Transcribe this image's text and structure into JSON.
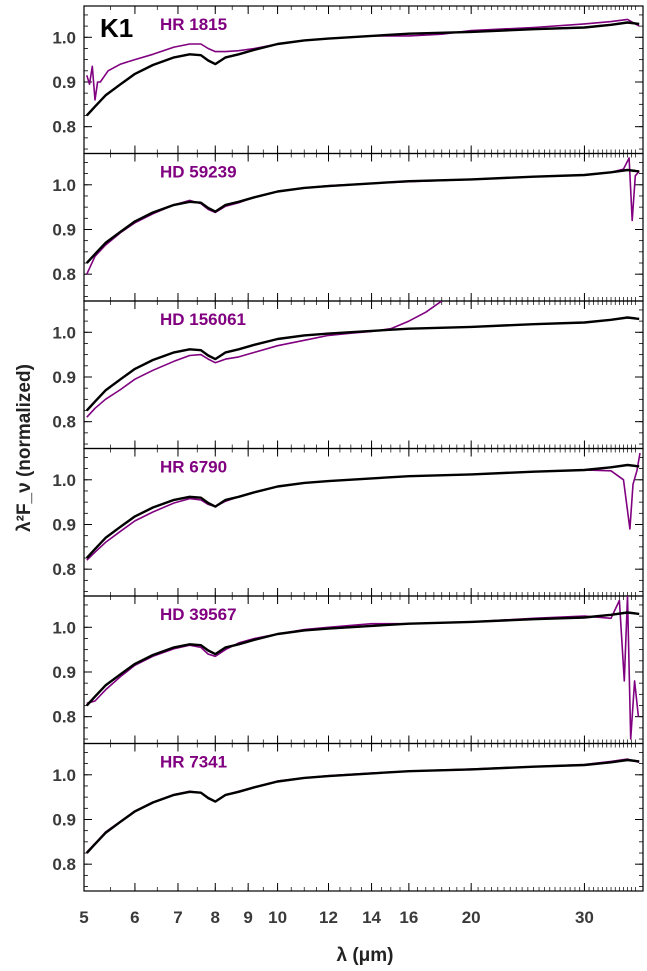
{
  "chart_data": {
    "type": "line",
    "spectral_type": "K1",
    "xlabel": "λ (μm)",
    "ylabel": "λ²F_ν (normalized)",
    "x_scale": "log",
    "xlim": [
      5.0,
      37.0
    ],
    "ylim": [
      0.74,
      1.07
    ],
    "x_ticks": [
      5,
      6,
      7,
      8,
      9,
      10,
      12,
      14,
      16,
      20,
      30
    ],
    "y_ticks": [
      0.8,
      0.9,
      1.0
    ],
    "colors": {
      "template": "#000000",
      "star": "#800080"
    },
    "panels": [
      {
        "star": "HR 1815",
        "series": [
          {
            "role": "template",
            "x": [
              5.05,
              5.2,
              5.4,
              5.7,
              6.0,
              6.4,
              6.9,
              7.3,
              7.6,
              7.8,
              8.0,
              8.3,
              8.7,
              9.2,
              10.0,
              11.0,
              12.0,
              14.0,
              16.0,
              20.0,
              25.0,
              30.0,
              33.0,
              35.0,
              36.5
            ],
            "y": [
              0.825,
              0.845,
              0.87,
              0.895,
              0.918,
              0.938,
              0.955,
              0.962,
              0.96,
              0.948,
              0.94,
              0.955,
              0.962,
              0.972,
              0.985,
              0.993,
              0.997,
              1.003,
              1.008,
              1.012,
              1.018,
              1.022,
              1.028,
              1.033,
              1.03
            ]
          },
          {
            "role": "star",
            "x": [
              5.05,
              5.1,
              5.15,
              5.2,
              5.25,
              5.3,
              5.45,
              5.7,
              6.0,
              6.4,
              6.9,
              7.3,
              7.6,
              7.8,
              8.0,
              8.3,
              8.7,
              9.2,
              10.0,
              11.0,
              12.0,
              14.0,
              16.0,
              18.0,
              20.0,
              25.0,
              30.0,
              33.0,
              35.0,
              36.5
            ],
            "y": [
              0.915,
              0.895,
              0.935,
              0.86,
              0.9,
              0.9,
              0.925,
              0.94,
              0.95,
              0.962,
              0.978,
              0.985,
              0.985,
              0.975,
              0.968,
              0.968,
              0.97,
              0.975,
              0.985,
              0.993,
              0.997,
              1.003,
              1.003,
              1.007,
              1.015,
              1.022,
              1.03,
              1.035,
              1.04,
              1.025
            ]
          }
        ]
      },
      {
        "star": "HD 59239",
        "series": [
          {
            "role": "template",
            "x": [
              5.05,
              5.2,
              5.4,
              5.7,
              6.0,
              6.4,
              6.9,
              7.3,
              7.6,
              7.8,
              8.0,
              8.3,
              8.7,
              9.2,
              10.0,
              11.0,
              12.0,
              14.0,
              16.0,
              20.0,
              25.0,
              30.0,
              33.0,
              35.0,
              36.5
            ],
            "y": [
              0.825,
              0.845,
              0.87,
              0.895,
              0.918,
              0.938,
              0.955,
              0.962,
              0.96,
              0.948,
              0.94,
              0.955,
              0.962,
              0.972,
              0.985,
              0.993,
              0.997,
              1.003,
              1.008,
              1.012,
              1.018,
              1.022,
              1.028,
              1.033,
              1.03
            ]
          },
          {
            "role": "star",
            "x": [
              5.05,
              5.2,
              5.4,
              5.7,
              6.0,
              6.4,
              6.9,
              7.3,
              7.6,
              7.8,
              8.0,
              8.3,
              8.7,
              9.2,
              10.0,
              11.0,
              12.0,
              14.0,
              16.0,
              20.0,
              25.0,
              30.0,
              33.0,
              34.5,
              35.2,
              35.6,
              36.0,
              36.5
            ],
            "y": [
              0.8,
              0.84,
              0.865,
              0.893,
              0.915,
              0.935,
              0.955,
              0.965,
              0.958,
              0.945,
              0.938,
              0.952,
              0.96,
              0.972,
              0.985,
              0.993,
              0.998,
              1.003,
              1.007,
              1.012,
              1.018,
              1.022,
              1.028,
              1.035,
              1.06,
              0.92,
              1.02,
              1.03
            ]
          }
        ]
      },
      {
        "star": "HD 156061",
        "series": [
          {
            "role": "template",
            "x": [
              5.05,
              5.2,
              5.4,
              5.7,
              6.0,
              6.4,
              6.9,
              7.3,
              7.6,
              7.8,
              8.0,
              8.3,
              8.7,
              9.2,
              10.0,
              11.0,
              12.0,
              14.0,
              16.0,
              20.0,
              25.0,
              30.0,
              33.0,
              35.0,
              36.5
            ],
            "y": [
              0.825,
              0.845,
              0.87,
              0.895,
              0.918,
              0.938,
              0.955,
              0.962,
              0.96,
              0.948,
              0.94,
              0.955,
              0.962,
              0.972,
              0.985,
              0.993,
              0.997,
              1.003,
              1.008,
              1.012,
              1.018,
              1.022,
              1.028,
              1.033,
              1.03
            ]
          },
          {
            "role": "star",
            "x": [
              5.05,
              5.2,
              5.4,
              5.7,
              6.0,
              6.4,
              6.9,
              7.3,
              7.6,
              7.8,
              8.0,
              8.3,
              8.7,
              9.2,
              10.0,
              11.0,
              12.0,
              13.0,
              14.0,
              15.0,
              16.0,
              17.0,
              18.0
            ],
            "y": [
              0.81,
              0.83,
              0.85,
              0.872,
              0.895,
              0.915,
              0.935,
              0.948,
              0.95,
              0.94,
              0.932,
              0.94,
              0.945,
              0.955,
              0.97,
              0.982,
              0.993,
              0.998,
              1.002,
              1.008,
              1.025,
              1.045,
              1.07
            ]
          }
        ]
      },
      {
        "star": "HR 6790",
        "series": [
          {
            "role": "template",
            "x": [
              5.05,
              5.2,
              5.4,
              5.7,
              6.0,
              6.4,
              6.9,
              7.3,
              7.6,
              7.8,
              8.0,
              8.3,
              8.7,
              9.2,
              10.0,
              11.0,
              12.0,
              14.0,
              16.0,
              20.0,
              25.0,
              30.0,
              33.0,
              35.0,
              36.5
            ],
            "y": [
              0.825,
              0.845,
              0.87,
              0.895,
              0.918,
              0.938,
              0.955,
              0.962,
              0.96,
              0.948,
              0.94,
              0.955,
              0.962,
              0.972,
              0.985,
              0.993,
              0.997,
              1.003,
              1.008,
              1.012,
              1.018,
              1.022,
              1.028,
              1.033,
              1.03
            ]
          },
          {
            "role": "star",
            "x": [
              5.05,
              5.2,
              5.4,
              5.7,
              6.0,
              6.4,
              6.9,
              7.3,
              7.6,
              7.8,
              8.0,
              8.3,
              8.7,
              9.2,
              10.0,
              11.0,
              12.0,
              14.0,
              16.0,
              20.0,
              25.0,
              30.0,
              33.0,
              34.5,
              35.3,
              35.7,
              36.2,
              36.6
            ],
            "y": [
              0.82,
              0.838,
              0.86,
              0.885,
              0.908,
              0.928,
              0.948,
              0.958,
              0.955,
              0.945,
              0.94,
              0.952,
              0.962,
              0.972,
              0.985,
              0.993,
              0.997,
              1.003,
              1.008,
              1.012,
              1.018,
              1.022,
              1.02,
              1.0,
              0.89,
              0.99,
              1.02,
              1.06
            ]
          }
        ]
      },
      {
        "star": "HD 39567",
        "series": [
          {
            "role": "template",
            "x": [
              5.05,
              5.2,
              5.4,
              5.7,
              6.0,
              6.4,
              6.9,
              7.3,
              7.6,
              7.8,
              8.0,
              8.3,
              8.7,
              9.2,
              10.0,
              11.0,
              12.0,
              14.0,
              16.0,
              20.0,
              25.0,
              30.0,
              33.0,
              35.0,
              36.5
            ],
            "y": [
              0.825,
              0.845,
              0.87,
              0.895,
              0.918,
              0.938,
              0.955,
              0.962,
              0.96,
              0.948,
              0.94,
              0.955,
              0.962,
              0.972,
              0.985,
              0.993,
              0.997,
              1.003,
              1.008,
              1.012,
              1.018,
              1.022,
              1.028,
              1.033,
              1.03
            ]
          },
          {
            "role": "star",
            "x": [
              5.05,
              5.2,
              5.4,
              5.7,
              6.0,
              6.4,
              6.9,
              7.3,
              7.6,
              7.8,
              8.0,
              8.3,
              8.7,
              9.2,
              10.0,
              11.0,
              12.0,
              14.0,
              16.0,
              20.0,
              25.0,
              30.0,
              33.0,
              34.0,
              34.6,
              35.0,
              35.4,
              35.9,
              36.4
            ],
            "y": [
              0.83,
              0.835,
              0.86,
              0.89,
              0.915,
              0.935,
              0.952,
              0.96,
              0.955,
              0.94,
              0.935,
              0.95,
              0.965,
              0.975,
              0.985,
              0.995,
              1.0,
              1.008,
              1.008,
              1.012,
              1.02,
              1.025,
              1.02,
              1.06,
              0.88,
              1.07,
              0.75,
              0.88,
              0.8
            ]
          }
        ]
      },
      {
        "star": "HR 7341",
        "series": [
          {
            "role": "template",
            "x": [
              5.05,
              5.2,
              5.4,
              5.7,
              6.0,
              6.4,
              6.9,
              7.3,
              7.6,
              7.8,
              8.0,
              8.3,
              8.7,
              9.2,
              10.0,
              11.0,
              12.0,
              14.0,
              16.0,
              20.0,
              25.0,
              30.0,
              33.0,
              35.0,
              36.5
            ],
            "y": [
              0.825,
              0.845,
              0.87,
              0.895,
              0.918,
              0.938,
              0.955,
              0.962,
              0.96,
              0.948,
              0.94,
              0.955,
              0.962,
              0.972,
              0.985,
              0.993,
              0.997,
              1.003,
              1.008,
              1.012,
              1.018,
              1.022,
              1.028,
              1.033,
              1.03
            ]
          },
          {
            "role": "star",
            "x": [
              5.05,
              5.2,
              5.4,
              5.7,
              6.0,
              6.4,
              6.9,
              7.3,
              7.6,
              7.8,
              8.0,
              8.3,
              8.7,
              9.2,
              10.0,
              11.0,
              12.0,
              14.0,
              16.0,
              20.0,
              25.0,
              30.0,
              33.0,
              35.0,
              36.5
            ],
            "y": [
              0.827,
              0.846,
              0.872,
              0.896,
              0.919,
              0.939,
              0.956,
              0.963,
              0.96,
              0.947,
              0.94,
              0.955,
              0.963,
              0.972,
              0.986,
              0.993,
              0.998,
              1.004,
              1.008,
              1.013,
              1.018,
              1.023,
              1.03,
              1.035,
              1.028
            ]
          }
        ]
      }
    ]
  }
}
